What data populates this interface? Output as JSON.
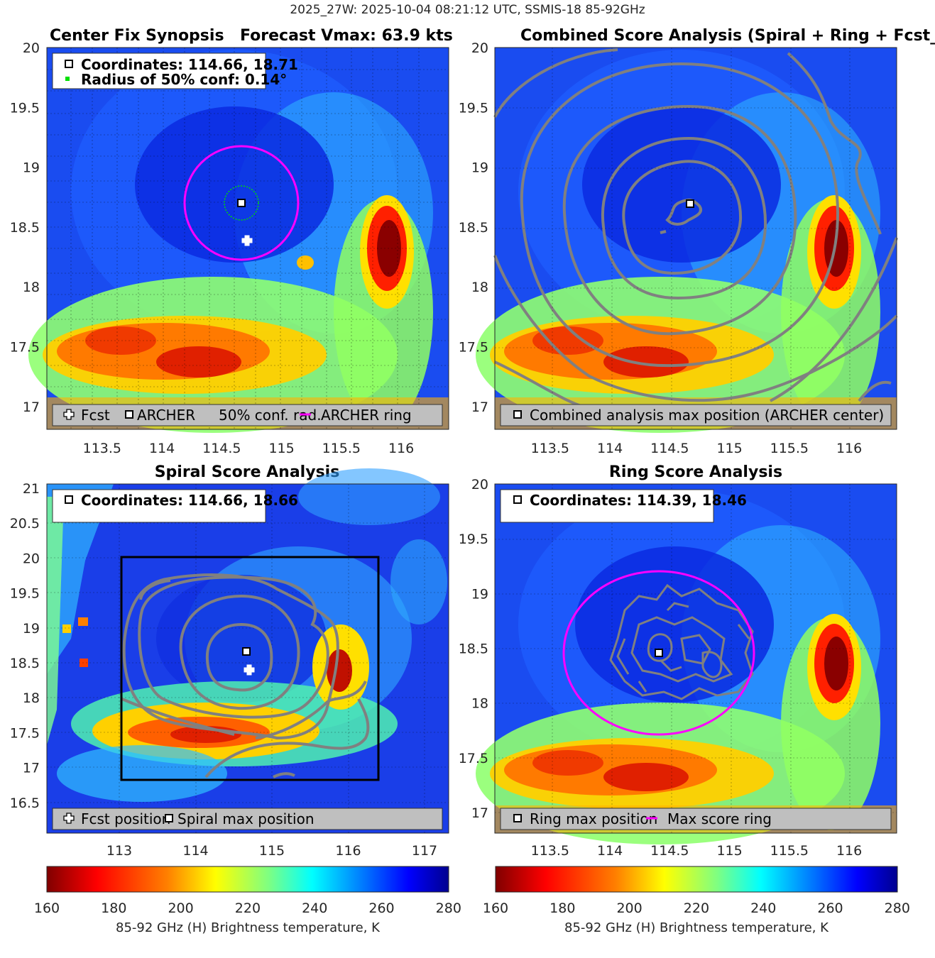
{
  "figure": {
    "suptitle": "2025_27W: 2025-10-04 08:21:12 UTC, SSMIS-18 85-92GHz"
  },
  "panels": {
    "synopsis": {
      "title_left": "Center Fix Synopsis",
      "title_right": "Forecast Vmax: 63.9 kts",
      "info_line1": "Coordinates: 114.66, 18.71",
      "info_line2": "Radius of 50% conf: 0.14°",
      "legend": {
        "fcst": "Fcst",
        "archer": "ARCHER",
        "conf": "50% conf. rad.",
        "ring": "ARCHER ring"
      }
    },
    "combined": {
      "title": "Combined Score Analysis (Spiral + Ring + Fcst_Pe",
      "legend": "Combined analysis max position (ARCHER center)"
    },
    "spiral": {
      "title": "Spiral Score Analysis",
      "info": "Coordinates: 114.66, 18.66",
      "legend": {
        "fcst": "Fcst position",
        "spiral": "Spiral max position"
      }
    },
    "ring": {
      "title": "Ring Score Analysis",
      "info": "Coordinates: 114.39, 18.46",
      "legend": {
        "ring_max": "Ring max position",
        "ring": "Max score ring"
      }
    }
  },
  "axes": {
    "std_x_ticks": [
      "113.5",
      "114",
      "114.5",
      "115",
      "115.5",
      "116"
    ],
    "std_y_ticks": [
      "20",
      "19.5",
      "19",
      "18.5",
      "18",
      "17.5",
      "17"
    ],
    "spiral_x_ticks": [
      "113",
      "114",
      "115",
      "116",
      "117"
    ],
    "spiral_y_ticks": [
      "21",
      "20.5",
      "20",
      "19.5",
      "19",
      "18.5",
      "18",
      "17.5",
      "17",
      "16.5"
    ]
  },
  "colorbar": {
    "ticks": [
      "160",
      "180",
      "200",
      "220",
      "240",
      "260",
      "280"
    ],
    "label": "85-92 GHz (H) Brightness temperature, K",
    "colors": [
      "#800000",
      "#ff0000",
      "#ff8000",
      "#ffff00",
      "#80ff80",
      "#00ffff",
      "#0080ff",
      "#0000ff",
      "#00008f"
    ]
  },
  "chart_data": [
    {
      "type": "heatmap",
      "title": "Center Fix Synopsis — Forecast Vmax: 63.9 kts",
      "xlim": [
        113.05,
        116.4
      ],
      "ylim": [
        16.8,
        20.0
      ],
      "points": {
        "archer_center": [
          114.66,
          18.71
        ],
        "forecast": [
          114.7,
          18.4
        ]
      },
      "conf_radius_deg": 0.14,
      "archer_ring_radius_deg": 0.47,
      "colorbar_range": [
        160,
        280
      ],
      "legend_position": "bottom"
    },
    {
      "type": "heatmap",
      "title": "Combined Score Analysis (Spiral + Ring + Fcst_Pe",
      "xlim": [
        113.05,
        116.4
      ],
      "ylim": [
        16.8,
        20.0
      ],
      "points": {
        "combined_max": [
          114.66,
          18.71
        ]
      },
      "legend_position": "bottom"
    },
    {
      "type": "heatmap",
      "title": "Spiral Score Analysis",
      "xlim": [
        112.03,
        117.3
      ],
      "ylim": [
        16.2,
        21.0
      ],
      "points": {
        "spiral_max": [
          114.66,
          18.66
        ],
        "forecast": [
          114.7,
          18.4
        ]
      },
      "search_box": {
        "x": [
          113.0,
          116.4
        ],
        "y": [
          16.8,
          20.0
        ]
      },
      "legend_position": "bottom"
    },
    {
      "type": "heatmap",
      "title": "Ring Score Analysis",
      "xlim": [
        113.05,
        116.4
      ],
      "ylim": [
        16.8,
        20.0
      ],
      "points": {
        "ring_max": [
          114.39,
          18.46
        ]
      },
      "ring_radius_deg": 0.8,
      "legend_position": "bottom"
    }
  ]
}
